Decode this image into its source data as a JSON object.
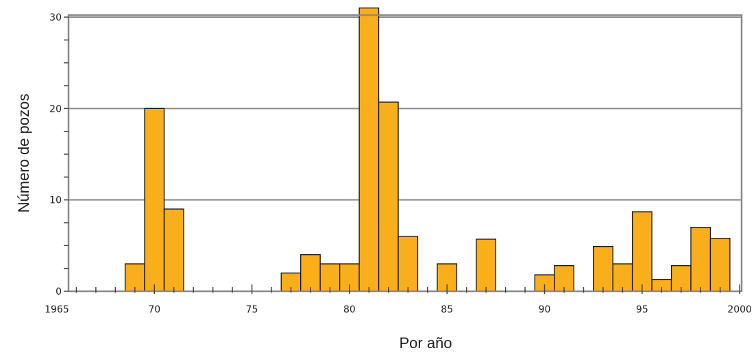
{
  "chart_data": {
    "type": "bar",
    "xlabel": "Por año",
    "ylabel": "Número de pozos",
    "xlim": [
      1965,
      2000
    ],
    "ylim": [
      0,
      30
    ],
    "x_ticks": [
      1965,
      1970,
      1975,
      1980,
      1985,
      1990,
      1995,
      2000
    ],
    "x_tick_labels": [
      "1965",
      "70",
      "75",
      "80",
      "85",
      "90",
      "95",
      "2000"
    ],
    "y_ticks": [
      0,
      10,
      20,
      30
    ],
    "y_tick_labels": [
      "0",
      "10",
      "20",
      "30"
    ],
    "grid": "horizontal",
    "bar_color": "#F9AE1B",
    "bars": [
      {
        "x": 1969,
        "value": 3
      },
      {
        "x": 1970,
        "value": 20
      },
      {
        "x": 1971,
        "value": 9
      },
      {
        "x": 1977,
        "value": 2
      },
      {
        "x": 1978,
        "value": 4
      },
      {
        "x": 1979,
        "value": 3
      },
      {
        "x": 1980,
        "value": 3
      },
      {
        "x": 1981,
        "value": 31
      },
      {
        "x": 1982,
        "value": 20.7
      },
      {
        "x": 1983,
        "value": 6
      },
      {
        "x": 1985,
        "value": 3
      },
      {
        "x": 1987,
        "value": 5.7
      },
      {
        "x": 1990,
        "value": 1.8
      },
      {
        "x": 1991,
        "value": 2.8
      },
      {
        "x": 1993,
        "value": 4.9
      },
      {
        "x": 1994,
        "value": 3
      },
      {
        "x": 1995,
        "value": 8.7
      },
      {
        "x": 1996,
        "value": 1.3
      },
      {
        "x": 1997,
        "value": 2.8
      },
      {
        "x": 1998,
        "value": 7
      },
      {
        "x": 1999,
        "value": 5.8
      }
    ]
  }
}
